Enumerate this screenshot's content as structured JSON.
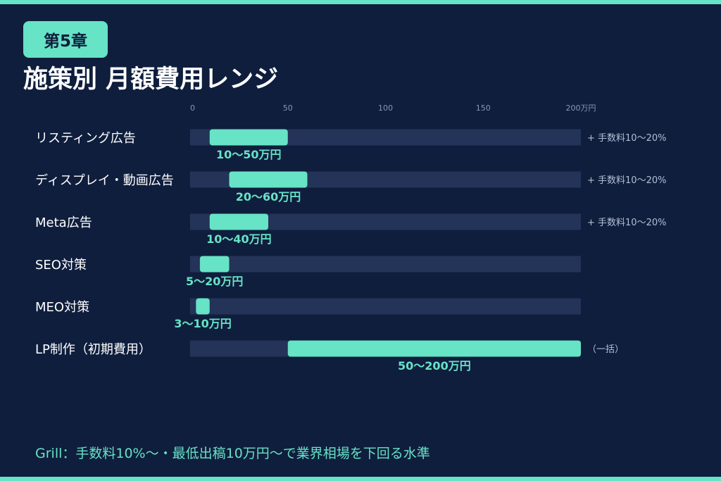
{
  "chapter_badge": "第5章",
  "page_title": "施策別 月額費用レンジ",
  "footer_note": "Grill：手数料10%〜・最低出稿10万円〜で業界相場を下回る水準",
  "colors": {
    "background": "#0f1e3d",
    "accent": "#67e3c6",
    "track": "#243358",
    "category_text": "#ffffff",
    "note_text": "#b4bfd6",
    "tick_text": "#8a97b5"
  },
  "chart_data": {
    "type": "bar",
    "orientation": "horizontal",
    "subtype": "range",
    "x_ticks": [
      "0",
      "50",
      "100",
      "150",
      "200万円"
    ],
    "xlim": [
      0,
      200
    ],
    "xunit": "万円",
    "grid": false,
    "categories": [
      "リスティング広告",
      "ディスプレイ・動画広告",
      "Meta広告",
      "SEO対策",
      "MEO対策",
      "LP制作（初期費用）"
    ],
    "ranges": [
      [
        10,
        50
      ],
      [
        20,
        60
      ],
      [
        10,
        40
      ],
      [
        5,
        20
      ],
      [
        3,
        10
      ],
      [
        50,
        200
      ]
    ],
    "range_labels": [
      "10〜50万円",
      "20〜60万円",
      "10〜40万円",
      "5〜20万円",
      "3〜10万円",
      "50〜200万円"
    ],
    "notes": [
      "+ 手数料10〜20%",
      "+ 手数料10〜20%",
      "+ 手数料10〜20%",
      "",
      "",
      "（一括）"
    ]
  }
}
